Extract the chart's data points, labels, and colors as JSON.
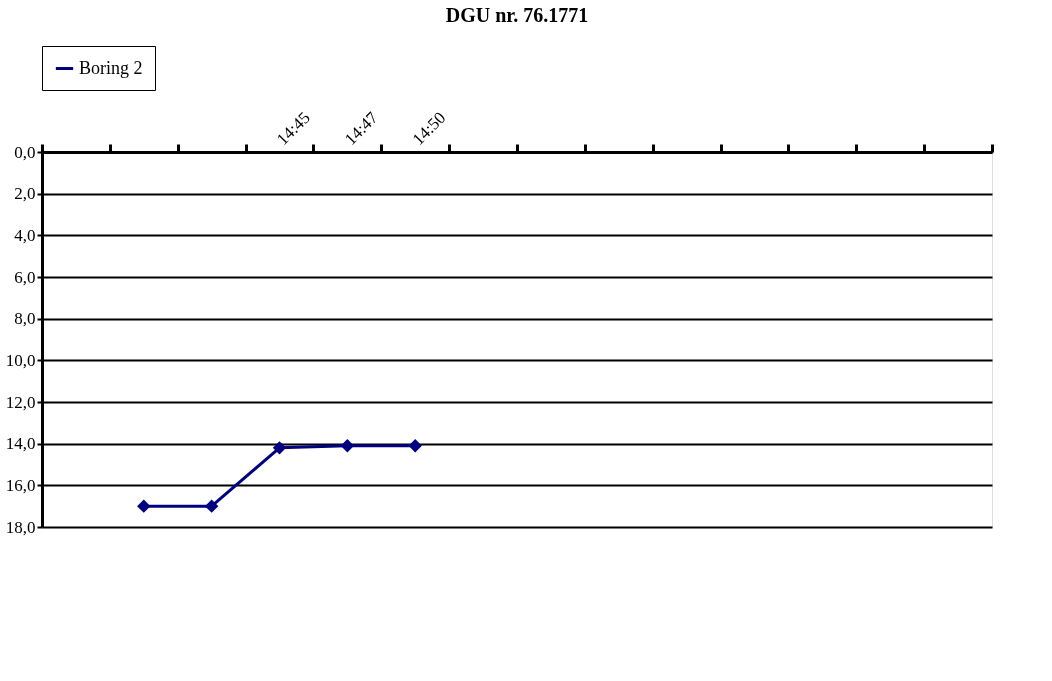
{
  "chart_data": {
    "type": "line",
    "title": "DGU nr. 76.1771",
    "categories": [
      null,
      null,
      null,
      "14:45",
      "14:47",
      "14:50",
      null,
      null,
      null,
      null,
      null,
      null,
      null,
      null
    ],
    "series": [
      {
        "name": "Boring 2",
        "color": "#000080",
        "values": [
          null,
          17.0,
          17.0,
          14.2,
          14.1,
          14.1,
          null,
          null,
          null,
          null,
          null,
          null,
          null,
          null
        ]
      }
    ],
    "ylim": [
      18,
      0
    ],
    "yticks": [
      {
        "value": 0,
        "label": "0,0"
      },
      {
        "value": 2,
        "label": "2,0"
      },
      {
        "value": 4,
        "label": "4,0"
      },
      {
        "value": 6,
        "label": "6,0"
      },
      {
        "value": 8,
        "label": "8,0"
      },
      {
        "value": 10,
        "label": "10,0"
      },
      {
        "value": 12,
        "label": "12,0"
      },
      {
        "value": 14,
        "label": "14,0"
      },
      {
        "value": 16,
        "label": "16,0"
      },
      {
        "value": 18,
        "label": "18,0"
      }
    ],
    "grid": "y",
    "legend": "top",
    "marker": "diamond",
    "line_style": "solid"
  }
}
